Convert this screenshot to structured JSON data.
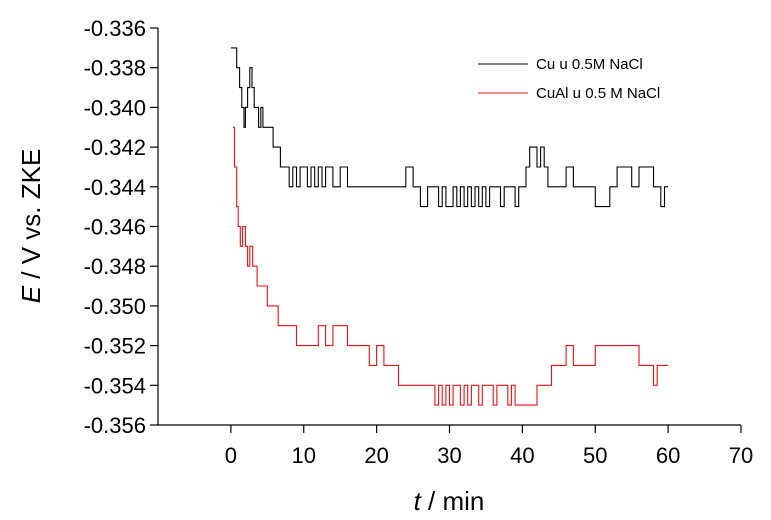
{
  "chart_data": {
    "type": "line",
    "xlabel_var": "t",
    "xlabel_unit": " / min",
    "ylabel_var": "E",
    "ylabel_unit": " / V vs. ZKE",
    "xlim": [
      -10,
      70
    ],
    "ylim": [
      -0.356,
      -0.336
    ],
    "xticks": [
      0,
      10,
      20,
      30,
      40,
      50,
      60,
      70
    ],
    "yticks": [
      -0.356,
      -0.354,
      -0.352,
      -0.35,
      -0.348,
      -0.346,
      -0.344,
      -0.342,
      -0.34,
      -0.338,
      -0.336
    ],
    "xtick_labels": [
      "0",
      "10",
      "20",
      "30",
      "40",
      "50",
      "60",
      "70"
    ],
    "ytick_labels": [
      "-0.356",
      "-0.354",
      "-0.352",
      "-0.350",
      "-0.348",
      "-0.346",
      "-0.344",
      "-0.342",
      "-0.340",
      "-0.338",
      "-0.336"
    ],
    "legend_position": "top-right",
    "grid": false,
    "series": [
      {
        "name": "Cu u 0.5M NaCl",
        "color": "#000000",
        "x": [
          0,
          0.6,
          0.8,
          1.2,
          1.5,
          1.8,
          2.0,
          2.3,
          2.6,
          2.9,
          3.2,
          3.5,
          3.8,
          4.1,
          4.4,
          4.8,
          5.3,
          5.8,
          6.3,
          6.8,
          7.3,
          8.0,
          8.5,
          9.0,
          9.5,
          10.0,
          10.5,
          11.0,
          11.5,
          12.0,
          12.5,
          13.0,
          14.0,
          15.0,
          16.0,
          17.0,
          18.0,
          19.0,
          20.0,
          21.0,
          22.0,
          23.0,
          24.0,
          25.0,
          26.0,
          27.0,
          28.0,
          28.5,
          29.0,
          29.5,
          30.0,
          30.5,
          31.0,
          31.5,
          32.0,
          32.5,
          33.0,
          33.5,
          34.0,
          34.5,
          35.0,
          35.5,
          36.0,
          36.5,
          37.0,
          37.5,
          38.0,
          38.5,
          39.0,
          39.5,
          40.0,
          40.5,
          41.0,
          41.5,
          42.0,
          42.5,
          43.0,
          43.5,
          44.0,
          44.5,
          45.0,
          46.0,
          47.0,
          48.0,
          49.0,
          50.0,
          51.0,
          52.0,
          53.0,
          54.0,
          55.0,
          56.0,
          57.0,
          58.0,
          58.5,
          59.0,
          59.5,
          60.0
        ],
        "y": [
          -0.337,
          -0.337,
          -0.338,
          -0.339,
          -0.34,
          -0.341,
          -0.34,
          -0.339,
          -0.338,
          -0.339,
          -0.34,
          -0.34,
          -0.341,
          -0.34,
          -0.341,
          -0.341,
          -0.341,
          -0.342,
          -0.342,
          -0.343,
          -0.343,
          -0.344,
          -0.343,
          -0.344,
          -0.343,
          -0.343,
          -0.344,
          -0.343,
          -0.344,
          -0.343,
          -0.344,
          -0.343,
          -0.344,
          -0.343,
          -0.344,
          -0.344,
          -0.344,
          -0.344,
          -0.344,
          -0.344,
          -0.344,
          -0.344,
          -0.343,
          -0.344,
          -0.345,
          -0.344,
          -0.344,
          -0.345,
          -0.344,
          -0.345,
          -0.345,
          -0.344,
          -0.345,
          -0.344,
          -0.345,
          -0.344,
          -0.345,
          -0.344,
          -0.345,
          -0.344,
          -0.345,
          -0.344,
          -0.344,
          -0.344,
          -0.345,
          -0.344,
          -0.344,
          -0.344,
          -0.345,
          -0.344,
          -0.344,
          -0.343,
          -0.342,
          -0.342,
          -0.343,
          -0.342,
          -0.343,
          -0.344,
          -0.344,
          -0.344,
          -0.344,
          -0.343,
          -0.344,
          -0.344,
          -0.344,
          -0.345,
          -0.345,
          -0.344,
          -0.343,
          -0.343,
          -0.344,
          -0.343,
          -0.343,
          -0.344,
          -0.344,
          -0.345,
          -0.344,
          -0.344
        ]
      },
      {
        "name": "CuAl u 0.5 M NaCl",
        "color": "#ee1111",
        "x": [
          0.3,
          0.5,
          0.8,
          1.0,
          1.3,
          1.6,
          2.0,
          2.3,
          2.6,
          3.0,
          3.3,
          3.6,
          4.0,
          4.5,
          5.0,
          5.5,
          6.0,
          6.5,
          7.0,
          8.0,
          9.0,
          10.0,
          11.0,
          12.0,
          13.0,
          14.0,
          15.0,
          16.0,
          17.0,
          18.0,
          19.0,
          20.0,
          21.0,
          22.0,
          23.0,
          24.0,
          25.0,
          26.0,
          27.0,
          28.0,
          28.5,
          29.0,
          29.5,
          30.0,
          30.5,
          31.0,
          31.5,
          32.0,
          32.5,
          33.0,
          33.5,
          34.0,
          34.5,
          35.0,
          35.5,
          36.0,
          36.5,
          37.0,
          37.5,
          38.0,
          38.5,
          39.0,
          40.0,
          41.0,
          42.0,
          43.0,
          44.0,
          45.0,
          46.0,
          47.0,
          48.0,
          49.0,
          50.0,
          51.0,
          52.0,
          53.0,
          54.0,
          55.0,
          56.0,
          57.0,
          57.5,
          58.0,
          58.5,
          59.0,
          60.0
        ],
        "y": [
          -0.341,
          -0.343,
          -0.345,
          -0.346,
          -0.347,
          -0.346,
          -0.347,
          -0.348,
          -0.347,
          -0.348,
          -0.348,
          -0.349,
          -0.349,
          -0.349,
          -0.35,
          -0.35,
          -0.35,
          -0.351,
          -0.351,
          -0.351,
          -0.352,
          -0.352,
          -0.352,
          -0.351,
          -0.352,
          -0.351,
          -0.351,
          -0.352,
          -0.352,
          -0.352,
          -0.353,
          -0.352,
          -0.353,
          -0.353,
          -0.354,
          -0.354,
          -0.354,
          -0.354,
          -0.354,
          -0.355,
          -0.354,
          -0.355,
          -0.354,
          -0.355,
          -0.354,
          -0.354,
          -0.355,
          -0.354,
          -0.355,
          -0.354,
          -0.354,
          -0.355,
          -0.354,
          -0.354,
          -0.354,
          -0.355,
          -0.354,
          -0.354,
          -0.354,
          -0.355,
          -0.354,
          -0.355,
          -0.355,
          -0.355,
          -0.354,
          -0.354,
          -0.353,
          -0.353,
          -0.352,
          -0.353,
          -0.353,
          -0.353,
          -0.352,
          -0.352,
          -0.352,
          -0.352,
          -0.352,
          -0.352,
          -0.353,
          -0.353,
          -0.353,
          -0.354,
          -0.353,
          -0.353,
          -0.353
        ]
      }
    ]
  }
}
